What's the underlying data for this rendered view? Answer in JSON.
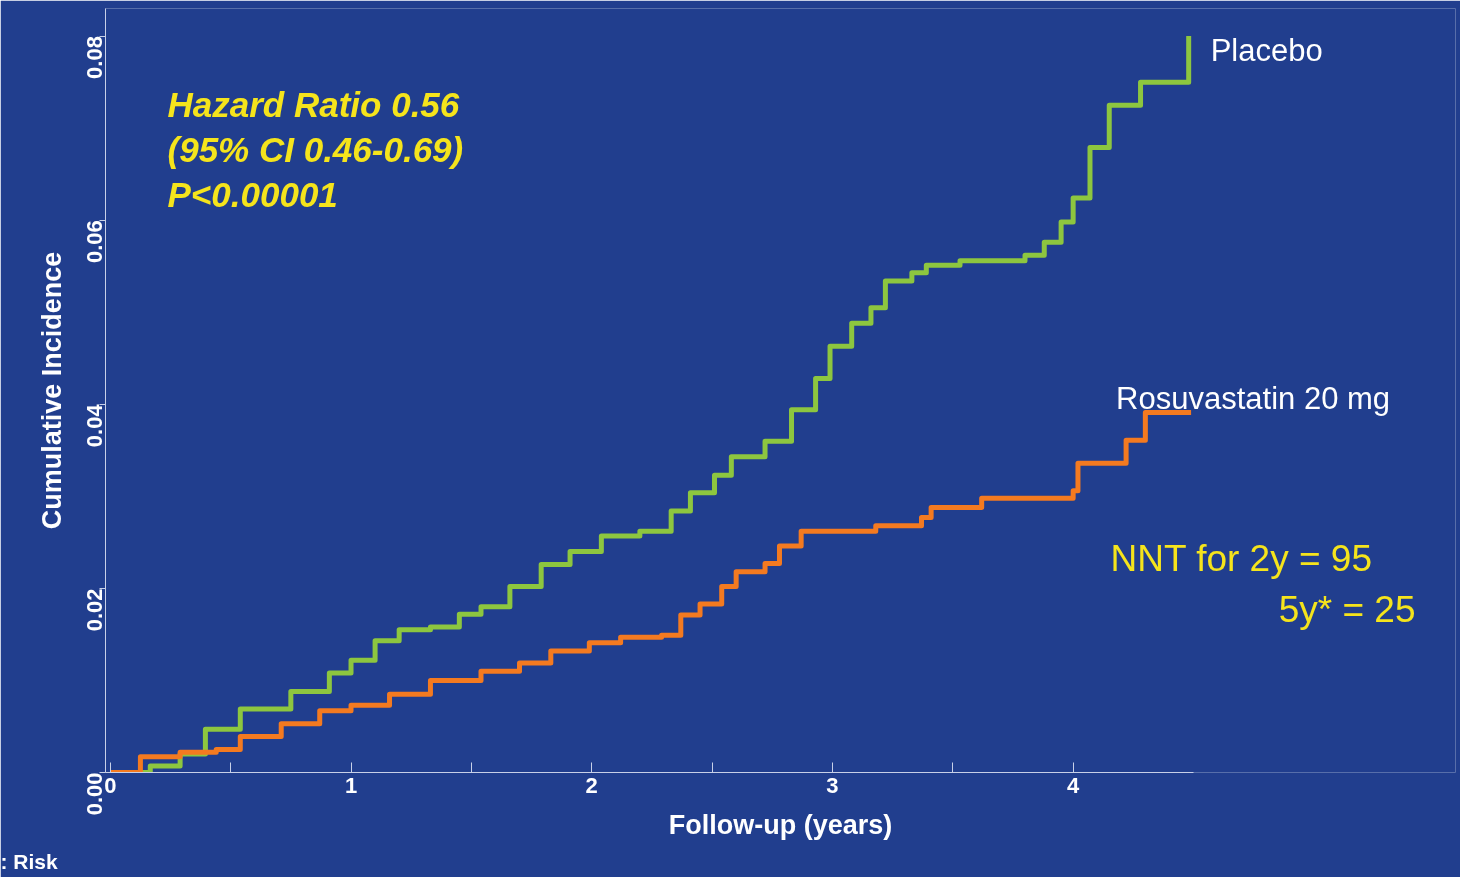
{
  "chart_data": {
    "type": "step",
    "xlabel": "Follow-up (years)",
    "ylabel": "Cumulative Incidence",
    "xlim": [
      -0.02,
      4.5
    ],
    "ylim": [
      0,
      0.083
    ],
    "xticks": [
      0,
      {
        "value": 0.5,
        "label": null
      },
      1,
      {
        "value": 1.5,
        "label": null
      },
      2,
      {
        "value": 2.5,
        "label": null
      },
      3,
      {
        "value": 3.5,
        "label": null
      },
      4
    ],
    "yticks": [
      {
        "value": 0,
        "label": "0.00"
      },
      {
        "value": 0.02,
        "label": "0.02"
      },
      {
        "value": 0.04,
        "label": "0.04"
      },
      {
        "value": 0.06,
        "label": "0.06"
      },
      {
        "value": 0.08,
        "label": "0.08"
      }
    ],
    "grid": false,
    "legend": false,
    "line_style": "solid",
    "marker": "none",
    "annotations": [
      "Hazard Ratio 0.56",
      "(95% CI 0.46-0.69)",
      "P<0.00001",
      "NNT for 2y  = 95",
      "5y* = 25",
      ": Risk"
    ],
    "series": [
      {
        "name": "Placebo",
        "color": "#8dc63f",
        "x": [
          0,
          0.166,
          0.29,
          0.395,
          0.54,
          0.75,
          0.91,
          1.0,
          1.1,
          1.2,
          1.33,
          1.45,
          1.54,
          1.66,
          1.79,
          1.91,
          2.04,
          2.2,
          2.33,
          2.41,
          2.51,
          2.58,
          2.72,
          2.83,
          2.93,
          2.99,
          3.08,
          3.16,
          3.22,
          3.33,
          3.39,
          3.53,
          3.8,
          3.88,
          3.95,
          4.0,
          4.07,
          4.15,
          4.28,
          4.48
        ],
        "values": [
          0,
          0.0007,
          0.002,
          0.0047,
          0.0069,
          0.0088,
          0.0108,
          0.0122,
          0.0143,
          0.0155,
          0.0158,
          0.0172,
          0.018,
          0.0202,
          0.0226,
          0.024,
          0.0257,
          0.0262,
          0.0284,
          0.0304,
          0.0323,
          0.0343,
          0.036,
          0.0394,
          0.0428,
          0.0463,
          0.0488,
          0.0505,
          0.0534,
          0.0543,
          0.0551,
          0.0556,
          0.0562,
          0.0576,
          0.0598,
          0.0624,
          0.0679,
          0.0725,
          0.075,
          0.08
        ]
      },
      {
        "name": "Rosuvastatin 20 mg",
        "color": "#f47a20",
        "x": [
          0,
          0.125,
          0.29,
          0.44,
          0.54,
          0.71,
          0.87,
          1.0,
          1.16,
          1.33,
          1.54,
          1.7,
          1.83,
          1.99,
          2.12,
          2.29,
          2.37,
          2.45,
          2.54,
          2.6,
          2.72,
          2.78,
          2.87,
          3.18,
          3.37,
          3.41,
          3.62,
          4.0,
          4.02,
          4.22,
          4.3,
          4.49
        ],
        "values": [
          0,
          0.0017,
          0.0022,
          0.0025,
          0.0039,
          0.0053,
          0.0067,
          0.0073,
          0.0085,
          0.01,
          0.011,
          0.0119,
          0.0132,
          0.0141,
          0.0147,
          0.0149,
          0.0171,
          0.0183,
          0.0202,
          0.0218,
          0.0227,
          0.0246,
          0.0262,
          0.0268,
          0.0277,
          0.0288,
          0.0298,
          0.0306,
          0.0336,
          0.0361,
          0.0391,
          0.0391
        ]
      }
    ]
  }
}
